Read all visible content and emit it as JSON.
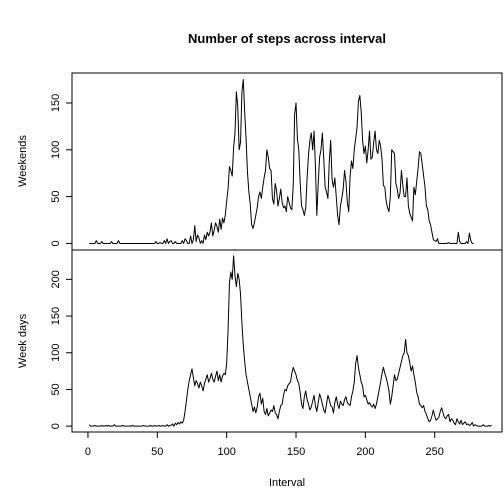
{
  "chart_data": {
    "type": "line",
    "title": "Number of steps across  interval",
    "xlabel": "Interval",
    "xlim": [
      -11.5,
      298.5
    ],
    "x_ticks": [
      0,
      50,
      100,
      150,
      200,
      250
    ],
    "line_color": "#000000",
    "background": "#ffffff",
    "panels": [
      {
        "ylabel": "Weekends",
        "ylim": [
          -7,
          182
        ],
        "y_ticks": [
          0,
          50,
          100,
          150
        ],
        "series": [
          {
            "x_start": 1,
            "values": [
              0,
              0,
              0,
              0,
              0,
              3,
              0,
              0,
              0,
              2,
              0,
              0,
              0,
              0,
              0,
              0,
              2,
              0,
              0,
              0,
              0,
              3,
              0,
              0,
              0,
              0,
              0,
              0,
              0,
              0,
              0,
              0,
              0,
              0,
              0,
              0,
              0,
              0,
              0,
              0,
              0,
              0,
              0,
              0,
              0,
              0,
              0,
              0,
              2,
              0,
              0,
              1,
              0,
              0,
              3,
              0,
              5,
              0,
              2,
              3,
              0,
              0,
              2,
              0,
              0,
              0,
              0,
              3,
              0,
              5,
              3,
              0,
              0,
              8,
              0,
              4,
              19,
              2,
              9,
              6,
              0,
              3,
              0,
              9,
              4,
              12,
              8,
              12,
              22,
              8,
              14,
              22,
              18,
              12,
              26,
              15,
              27,
              22,
              30,
              45,
              58,
              82,
              78,
              72,
              102,
              118,
              162,
              146,
              100,
              108,
              162,
              175,
              140,
              112,
              76,
              55,
              42,
              20,
              16,
              22,
              30,
              38,
              50,
              55,
              48,
              60,
              70,
              78,
              100,
              92,
              80,
              78,
              48,
              42,
              64,
              56,
              40,
              48,
              58,
              44,
              38,
              40,
              34,
              50,
              44,
              38,
              36,
              62,
              138,
              150,
              112,
              100,
              65,
              40,
              36,
              30,
              38,
              70,
              95,
              110,
              118,
              100,
              120,
              82,
              30,
              64,
              92,
              100,
              118,
              90,
              60,
              55,
              48,
              88,
              110,
              68,
              60,
              70,
              50,
              30,
              20,
              40,
              48,
              58,
              78,
              66,
              44,
              34,
              72,
              88,
              80,
              100,
              112,
              124,
              152,
              158,
              140,
              110,
              96,
              104,
              86,
              100,
              120,
              90,
              92,
              108,
              120,
              100,
              96,
              110,
              104,
              90,
              62,
              60,
              45,
              38,
              34,
              50,
              100,
              98,
              96,
              64,
              58,
              48,
              54,
              78,
              62,
              50,
              50,
              70,
              40,
              32,
              28,
              24,
              60,
              52,
              66,
              80,
              98,
              96,
              84,
              72,
              60,
              40,
              36,
              24,
              20,
              12,
              4,
              3,
              2,
              5,
              0,
              0,
              0,
              0,
              0,
              0,
              0,
              1,
              0,
              0,
              0,
              0,
              0,
              0,
              12,
              2,
              0,
              0,
              0,
              0,
              2,
              0,
              11,
              3,
              0,
              0
            ]
          }
        ]
      },
      {
        "ylabel": "Week days",
        "ylim": [
          -8,
          240
        ],
        "y_ticks": [
          0,
          50,
          100,
          150,
          200
        ],
        "series": [
          {
            "x_start": 1,
            "values": [
              2,
              0,
              0,
              0,
              1,
              0,
              0,
              0,
              0,
              1,
              0,
              0,
              1,
              0,
              1,
              0,
              0,
              0,
              2,
              0,
              0,
              0,
              0,
              0,
              1,
              0,
              0,
              0,
              0,
              0,
              0,
              1,
              0,
              0,
              0,
              0,
              0,
              0,
              0,
              1,
              0,
              0,
              0,
              0,
              1,
              0,
              0,
              1,
              0,
              0,
              1,
              0,
              0,
              1,
              0,
              0,
              2,
              0,
              1,
              1,
              3,
              0,
              4,
              2,
              5,
              3,
              6,
              4,
              8,
              20,
              35,
              50,
              62,
              70,
              78,
              66,
              55,
              62,
              58,
              52,
              60,
              55,
              48,
              58,
              64,
              70,
              60,
              65,
              72,
              64,
              60,
              68,
              75,
              62,
              70,
              60,
              68,
              72,
              70,
              85,
              130,
              195,
              210,
              200,
              232,
              205,
              190,
              208,
              200,
              180,
              140,
              110,
              88,
              70,
              60,
              50,
              40,
              30,
              20,
              26,
              18,
              26,
              40,
              45,
              30,
              38,
              20,
              16,
              24,
              14,
              18,
              22,
              20,
              28,
              18,
              16,
              10,
              20,
              28,
              30,
              42,
              50,
              48,
              55,
              58,
              60,
              72,
              80,
              75,
              70,
              62,
              58,
              46,
              30,
              24,
              40,
              48,
              36,
              30,
              22,
              26,
              34,
              42,
              28,
              20,
              32,
              44,
              38,
              30,
              22,
              18,
              30,
              42,
              36,
              28,
              26,
              18,
              32,
              40,
              30,
              24,
              34,
              30,
              28,
              36,
              40,
              32,
              30,
              28,
              40,
              48,
              60,
              85,
              96,
              80,
              70,
              60,
              55,
              40,
              42,
              36,
              30,
              32,
              28,
              26,
              30,
              24,
              30,
              40,
              50,
              60,
              72,
              80,
              72,
              66,
              58,
              48,
              30,
              40,
              55,
              70,
              62,
              64,
              72,
              80,
              88,
              96,
              100,
              118,
              100,
              96,
              86,
              75,
              82,
              70,
              60,
              46,
              40,
              30,
              28,
              25,
              28,
              20,
              16,
              10,
              6,
              8,
              14,
              22,
              14,
              8,
              10,
              12,
              20,
              25,
              18,
              12,
              10,
              14,
              16,
              6,
              10,
              8,
              4,
              2,
              10,
              6,
              3,
              8,
              2,
              4,
              6,
              2,
              3,
              1,
              2,
              5,
              0,
              2,
              1,
              0,
              0,
              0,
              0,
              2,
              0,
              0,
              0,
              1,
              0,
              1
            ]
          }
        ]
      }
    ]
  }
}
